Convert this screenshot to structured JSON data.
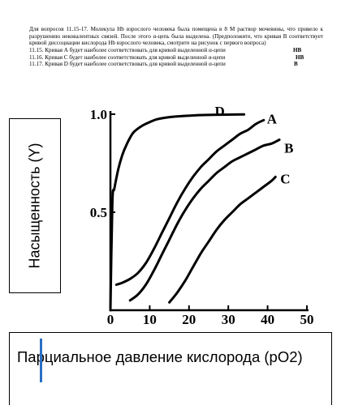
{
  "question": {
    "intro": "Для вопросов 11.15-17. Молекула Hb взрослого человека была помещена в 8 М раствор мочевины, что привело к разрушению нековалентных связей. После этого α-цепь была выделена. (Предположите, что кривая B соответствует кривой диссоциации кислорода Hb взрослого человека, смотрите на рисунок с первого вопроса)",
    "items": [
      {
        "text": "11.15. Кривая А будет  наиболее соответствовать для кривой выделенной α-цепи",
        "answer": "HB"
      },
      {
        "text": "11.16. Кривая С будет  наиболее соответствовать для кривой выделенной α-цепи",
        "answer": "HB"
      },
      {
        "text": "11.17. Кривая D  будет  наиболее соответствовать для кривой выделенной α-цепи",
        "answer": "B"
      }
    ]
  },
  "chart_data": {
    "type": "line",
    "title": "",
    "xlabel": "Парциальное давление кислорода (pO2)",
    "ylabel": "Насыщенность (Y)",
    "xlim": [
      0,
      50
    ],
    "ylim": [
      0,
      1.0
    ],
    "x_ticks": [
      "0",
      "10",
      "20",
      "30",
      "40",
      "50"
    ],
    "y_ticks": [
      "0.5",
      "1.0"
    ],
    "grid": false,
    "series": [
      {
        "name": "D",
        "x": [
          0,
          0.5,
          1,
          2,
          3,
          4,
          5,
          6,
          8,
          10,
          12,
          15,
          18,
          22,
          26,
          30,
          34
        ],
        "y": [
          0.0,
          0.55,
          0.62,
          0.72,
          0.79,
          0.84,
          0.88,
          0.91,
          0.94,
          0.96,
          0.975,
          0.985,
          0.99,
          0.995,
          0.997,
          0.998,
          0.999
        ]
      },
      {
        "name": "A",
        "x": [
          1.5,
          3,
          5,
          7,
          9,
          11,
          13,
          15,
          17,
          19,
          21,
          23,
          25,
          27,
          29,
          31,
          33,
          35,
          37,
          39
        ],
        "y": [
          0.13,
          0.14,
          0.16,
          0.19,
          0.24,
          0.31,
          0.39,
          0.47,
          0.55,
          0.62,
          0.68,
          0.73,
          0.77,
          0.81,
          0.84,
          0.87,
          0.9,
          0.92,
          0.95,
          0.97
        ]
      },
      {
        "name": "B",
        "x": [
          5,
          7,
          9,
          11,
          13,
          15,
          17,
          19,
          21,
          23,
          25,
          27,
          29,
          31,
          33,
          35,
          37,
          39,
          41,
          43
        ],
        "y": [
          0.05,
          0.08,
          0.13,
          0.2,
          0.28,
          0.36,
          0.44,
          0.51,
          0.57,
          0.62,
          0.66,
          0.7,
          0.73,
          0.76,
          0.78,
          0.8,
          0.82,
          0.84,
          0.85,
          0.87
        ]
      },
      {
        "name": "C",
        "x": [
          15,
          17,
          19,
          21,
          23,
          25,
          27,
          29,
          31,
          33,
          35,
          37,
          39,
          41,
          42
        ],
        "y": [
          0.04,
          0.09,
          0.15,
          0.22,
          0.29,
          0.35,
          0.41,
          0.46,
          0.5,
          0.54,
          0.57,
          0.6,
          0.63,
          0.66,
          0.68
        ]
      }
    ]
  }
}
